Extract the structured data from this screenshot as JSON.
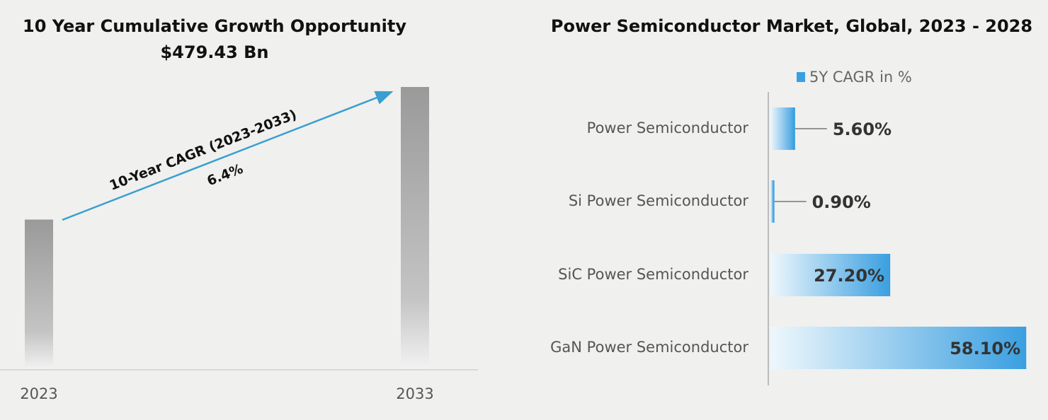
{
  "chart_data": [
    {
      "type": "bar",
      "title": "10 Year Cumulative Growth Opportunity",
      "subtitle": "$479.43 Bn",
      "categories": [
        "2023",
        "2033"
      ],
      "values": [
        53,
        100
      ],
      "ylim": [
        0,
        100
      ],
      "color": "#9e9e9e",
      "annotations": [
        "10-Year CAGR (2023-2033)",
        "6.4%"
      ]
    },
    {
      "type": "hbar",
      "title": "Power Semiconductor Market, Global, 2023 - 2028",
      "categories": [
        "Power Semiconductor",
        "Si Power Semiconductor",
        "SiC Power Semiconductor",
        "GaN Power Semiconductor"
      ],
      "series": [
        {
          "name": "5Y CAGR in %",
          "color": "#3a9fe0",
          "values": [
            5.6,
            0.9,
            27.2,
            58.1
          ],
          "value_labels": [
            "5.60%",
            "0.90%",
            "27.20%",
            "58.10%"
          ]
        }
      ],
      "xlim": [
        0,
        60
      ]
    }
  ]
}
